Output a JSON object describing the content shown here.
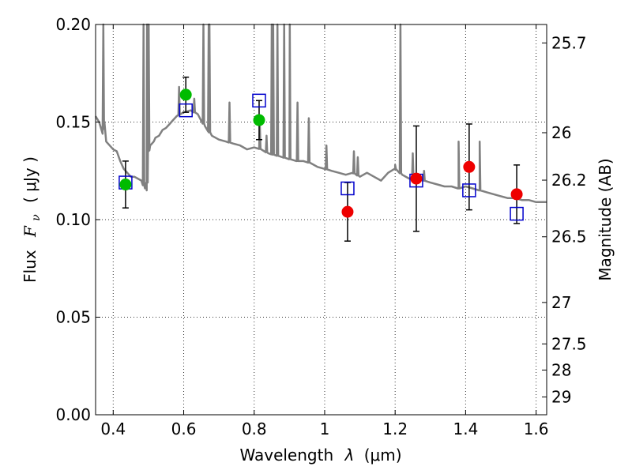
{
  "chart_data": {
    "type": "scatter",
    "xlabel_prefix": "Wavelength",
    "xlabel_symbol": "λ",
    "xlabel_unit": "(μm)",
    "ylabel_prefix": "Flux",
    "ylabel_symbol": "F",
    "ylabel_subscript": "ν",
    "ylabel_unit": "( μJy )",
    "right_ylabel": "Magnitude (AB)",
    "xlim": [
      0.35,
      1.63
    ],
    "ylim": [
      0.0,
      0.2
    ],
    "x_ticks": [
      0.4,
      0.6,
      0.8,
      1.0,
      1.2,
      1.4,
      1.6
    ],
    "x_tick_labels": [
      "0.4",
      "0.6",
      "0.8",
      "1",
      "1.2",
      "1.4",
      "1.6"
    ],
    "y_ticks": [
      0.0,
      0.05,
      0.1,
      0.15,
      0.2
    ],
    "y_tick_labels": [
      "0.00",
      "0.05",
      "0.10",
      "0.15",
      "0.20"
    ],
    "right_ticks": [
      {
        "mag": 25.7,
        "label": "25.7"
      },
      {
        "mag": 26,
        "label": "26"
      },
      {
        "mag": 26.2,
        "label": "26.2"
      },
      {
        "mag": 26.5,
        "label": "26.5"
      },
      {
        "mag": 27,
        "label": "27"
      },
      {
        "mag": 27.5,
        "label": "27.5"
      },
      {
        "mag": 28,
        "label": "28"
      },
      {
        "mag": 29,
        "label": "29"
      }
    ],
    "grid": true,
    "colors": {
      "template": "#808080",
      "optical_obs": "#00bb00",
      "nir_obs": "#ee0000",
      "model": "#0000cc",
      "errorbar": "#000000"
    },
    "observed_optical": [
      {
        "x": 0.435,
        "y": 0.118,
        "err": 0.012
      },
      {
        "x": 0.606,
        "y": 0.164,
        "err": 0.009
      },
      {
        "x": 0.814,
        "y": 0.151,
        "err": 0.01
      }
    ],
    "observed_nir": [
      {
        "x": 1.065,
        "y": 0.104,
        "err": 0.015
      },
      {
        "x": 1.26,
        "y": 0.121,
        "err": 0.027
      },
      {
        "x": 1.41,
        "y": 0.127,
        "err": 0.022
      },
      {
        "x": 1.545,
        "y": 0.113,
        "err": 0.015
      }
    ],
    "model_points": [
      {
        "x": 0.435,
        "y": 0.119
      },
      {
        "x": 0.606,
        "y": 0.156
      },
      {
        "x": 0.814,
        "y": 0.161
      },
      {
        "x": 1.065,
        "y": 0.116
      },
      {
        "x": 1.26,
        "y": 0.12
      },
      {
        "x": 1.41,
        "y": 0.115
      },
      {
        "x": 1.545,
        "y": 0.103
      }
    ],
    "template_spectrum": [
      [
        0.35,
        0.153
      ],
      [
        0.36,
        0.15
      ],
      [
        0.37,
        0.144
      ],
      [
        0.375,
        0.15
      ],
      [
        0.38,
        0.14
      ],
      [
        0.39,
        0.138
      ],
      [
        0.4,
        0.136
      ],
      [
        0.41,
        0.135
      ],
      [
        0.42,
        0.13
      ],
      [
        0.43,
        0.126
      ],
      [
        0.44,
        0.124
      ],
      [
        0.45,
        0.122
      ],
      [
        0.46,
        0.122
      ],
      [
        0.47,
        0.121
      ],
      [
        0.48,
        0.12
      ],
      [
        0.49,
        0.116
      ],
      [
        0.495,
        0.115
      ],
      [
        0.5,
        0.135
      ],
      [
        0.505,
        0.138
      ],
      [
        0.51,
        0.139
      ],
      [
        0.515,
        0.14
      ],
      [
        0.52,
        0.142
      ],
      [
        0.53,
        0.143
      ],
      [
        0.54,
        0.146
      ],
      [
        0.55,
        0.147
      ],
      [
        0.56,
        0.149
      ],
      [
        0.57,
        0.151
      ],
      [
        0.58,
        0.153
      ],
      [
        0.59,
        0.154
      ],
      [
        0.6,
        0.155
      ],
      [
        0.62,
        0.156
      ],
      [
        0.64,
        0.154
      ],
      [
        0.66,
        0.148
      ],
      [
        0.68,
        0.143
      ],
      [
        0.7,
        0.141
      ],
      [
        0.72,
        0.14
      ],
      [
        0.74,
        0.139
      ],
      [
        0.76,
        0.138
      ],
      [
        0.78,
        0.136
      ],
      [
        0.8,
        0.137
      ],
      [
        0.82,
        0.136
      ],
      [
        0.84,
        0.134
      ],
      [
        0.86,
        0.133
      ],
      [
        0.88,
        0.132
      ],
      [
        0.9,
        0.131
      ],
      [
        0.92,
        0.13
      ],
      [
        0.94,
        0.13
      ],
      [
        0.96,
        0.129
      ],
      [
        0.98,
        0.127
      ],
      [
        1.0,
        0.126
      ],
      [
        1.02,
        0.125
      ],
      [
        1.04,
        0.124
      ],
      [
        1.06,
        0.123
      ],
      [
        1.08,
        0.124
      ],
      [
        1.1,
        0.122
      ],
      [
        1.12,
        0.124
      ],
      [
        1.14,
        0.122
      ],
      [
        1.16,
        0.12
      ],
      [
        1.18,
        0.124
      ],
      [
        1.2,
        0.126
      ],
      [
        1.22,
        0.123
      ],
      [
        1.24,
        0.121
      ],
      [
        1.26,
        0.121
      ],
      [
        1.28,
        0.12
      ],
      [
        1.3,
        0.119
      ],
      [
        1.32,
        0.118
      ],
      [
        1.34,
        0.117
      ],
      [
        1.36,
        0.117
      ],
      [
        1.38,
        0.116
      ],
      [
        1.4,
        0.117
      ],
      [
        1.42,
        0.116
      ],
      [
        1.44,
        0.115
      ],
      [
        1.46,
        0.114
      ],
      [
        1.48,
        0.113
      ],
      [
        1.5,
        0.112
      ],
      [
        1.52,
        0.111
      ],
      [
        1.54,
        0.111
      ],
      [
        1.56,
        0.11
      ],
      [
        1.58,
        0.11
      ],
      [
        1.6,
        0.109
      ],
      [
        1.63,
        0.109
      ]
    ],
    "emission_lines": [
      {
        "x": 0.372,
        "peak": 0.205
      },
      {
        "x": 0.486,
        "peak": 0.205
      },
      {
        "x": 0.496,
        "peak": 0.205
      },
      {
        "x": 0.5007,
        "peak": 0.205
      },
      {
        "x": 0.587,
        "peak": 0.168
      },
      {
        "x": 0.63,
        "peak": 0.162
      },
      {
        "x": 0.656,
        "peak": 0.205
      },
      {
        "x": 0.671,
        "peak": 0.205
      },
      {
        "x": 0.673,
        "peak": 0.205
      },
      {
        "x": 0.73,
        "peak": 0.16
      },
      {
        "x": 0.816,
        "peak": 0.148
      },
      {
        "x": 0.835,
        "peak": 0.143
      },
      {
        "x": 0.85,
        "peak": 0.205
      },
      {
        "x": 0.854,
        "peak": 0.205
      },
      {
        "x": 0.866,
        "peak": 0.205
      },
      {
        "x": 0.885,
        "peak": 0.205
      },
      {
        "x": 0.901,
        "peak": 0.205
      },
      {
        "x": 0.923,
        "peak": 0.16
      },
      {
        "x": 0.955,
        "peak": 0.152
      },
      {
        "x": 1.005,
        "peak": 0.138
      },
      {
        "x": 1.083,
        "peak": 0.135
      },
      {
        "x": 1.094,
        "peak": 0.132
      },
      {
        "x": 1.2,
        "peak": 0.128
      },
      {
        "x": 1.215,
        "peak": 0.205
      },
      {
        "x": 1.25,
        "peak": 0.134
      },
      {
        "x": 1.282,
        "peak": 0.125
      },
      {
        "x": 1.38,
        "peak": 0.14
      },
      {
        "x": 1.44,
        "peak": 0.14
      }
    ]
  }
}
